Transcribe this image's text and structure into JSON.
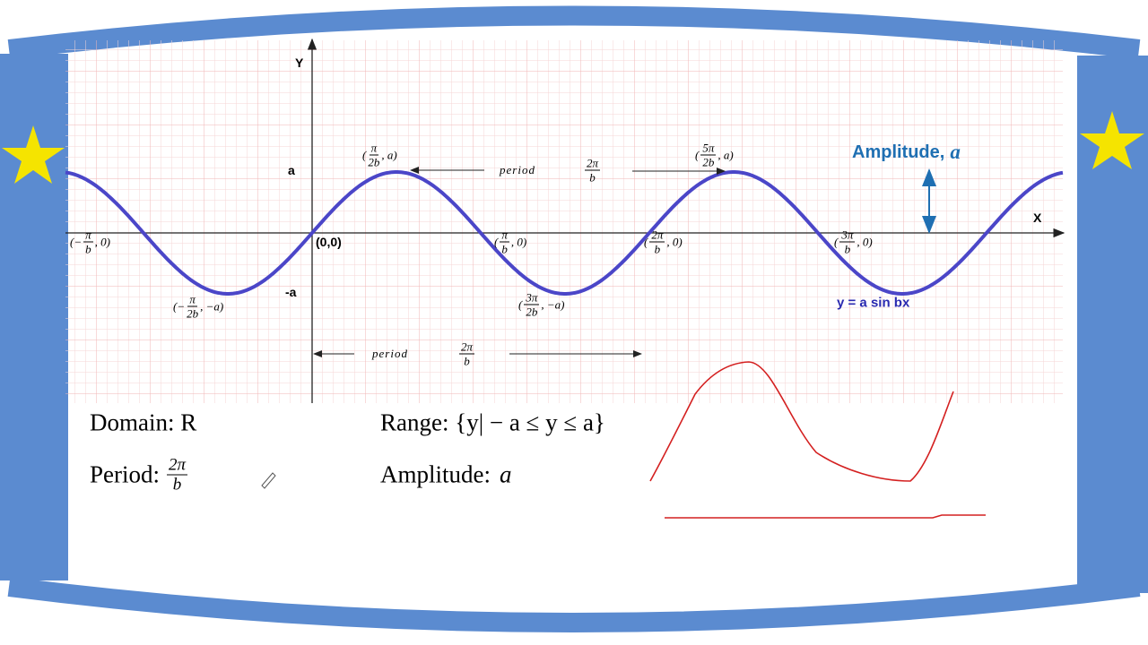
{
  "graph": {
    "y_axis": "Y",
    "x_axis": "X",
    "a_label": "a",
    "neg_a_label": "-a",
    "origin": "(0,0)",
    "points": [
      {
        "open": "(−",
        "num": "π",
        "den": "b",
        "close": ", 0)"
      },
      {
        "open": "(−",
        "num": "π",
        "den": "2b",
        "close": ", −a)"
      },
      {
        "open": "(",
        "num": "π",
        "den": "2b",
        "close": ", a)"
      },
      {
        "open": "(",
        "num": "π",
        "den": "b",
        "close": ", 0)"
      },
      {
        "open": "(",
        "num": "3π",
        "den": "2b",
        "close": ", −a)"
      },
      {
        "open": "(",
        "num": "2π",
        "den": "b",
        "close": ", 0)"
      },
      {
        "open": "(",
        "num": "5π",
        "den": "2b",
        "close": ", a)"
      },
      {
        "open": "(",
        "num": "3π",
        "den": "b",
        "close": ", 0)"
      }
    ],
    "period_top": {
      "word": "period",
      "num": "2π",
      "den": "b"
    },
    "period_bottom": {
      "word": "period",
      "num": "2π",
      "den": "b"
    },
    "amplitude": {
      "text": "Amplitude,",
      "var": "a"
    },
    "equation": "y = a sin bx"
  },
  "notes": {
    "domain": "Domain: R",
    "period": {
      "label": "Period:",
      "num": "2π",
      "den": "b"
    },
    "range": "Range: {y| − a ≤ y ≤ a}",
    "amplitude": {
      "label": "Amplitude:",
      "var": "a"
    }
  }
}
